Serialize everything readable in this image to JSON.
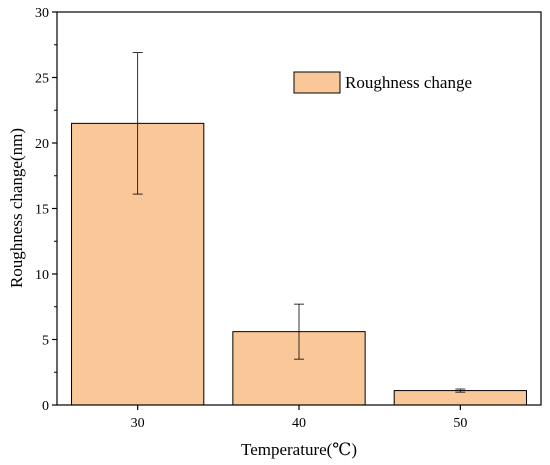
{
  "chart_data": {
    "type": "bar",
    "categories": [
      "30",
      "40",
      "50"
    ],
    "series": [
      {
        "name": "Roughness change",
        "values": [
          21.5,
          5.6,
          1.1
        ],
        "error": [
          5.4,
          2.1,
          0.12
        ],
        "color": "#FAC898"
      }
    ],
    "xlabel": "Temperature(℃)",
    "ylabel": "Roughness change(nm)",
    "ylim": [
      0,
      30
    ],
    "yticks": [
      0,
      5,
      10,
      15,
      20,
      25,
      30
    ],
    "yticklabels": [
      "0",
      "5",
      "10",
      "15",
      "20",
      "25",
      "30"
    ],
    "legend_position": "top-right",
    "grid": false
  }
}
